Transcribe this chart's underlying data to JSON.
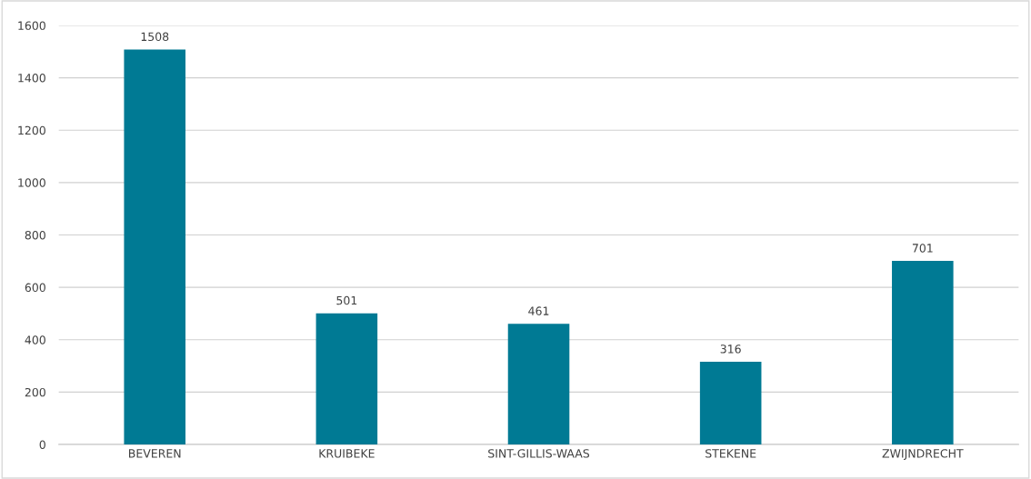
{
  "chart_data": {
    "type": "bar",
    "categories": [
      "BEVEREN",
      "KRUIBEKE",
      "SINT-GILLIS-WAAS",
      "STEKENE",
      "ZWIJNDRECHT"
    ],
    "values": [
      1508,
      501,
      461,
      316,
      701
    ],
    "color": "#007a94",
    "ylim": [
      0,
      1600
    ],
    "yticks": [
      0,
      200,
      400,
      600,
      800,
      1000,
      1200,
      1400,
      1600
    ],
    "grid": "y",
    "data_labels": true
  }
}
